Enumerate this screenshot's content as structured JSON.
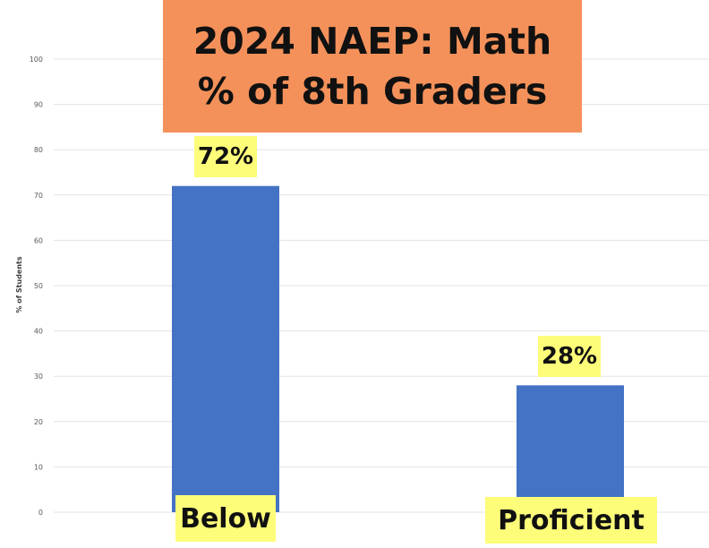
{
  "chart_data": {
    "type": "bar",
    "title_lines": [
      "2024 NAEP: Math",
      "% of 8th Graders"
    ],
    "xlabel": "",
    "ylabel": "% of Students",
    "ylim": [
      0,
      100
    ],
    "yticks": [
      0,
      10,
      20,
      30,
      40,
      50,
      60,
      70,
      80,
      90,
      100
    ],
    "categories": [
      "Below",
      "Proficient"
    ],
    "values": [
      72,
      28
    ],
    "data_labels": [
      "72%",
      "28%"
    ],
    "grid": true,
    "legend": "none"
  },
  "colors": {
    "bar": "#4472c4",
    "title_background": "#f4915a",
    "label_highlight": "#fdfd7a"
  }
}
